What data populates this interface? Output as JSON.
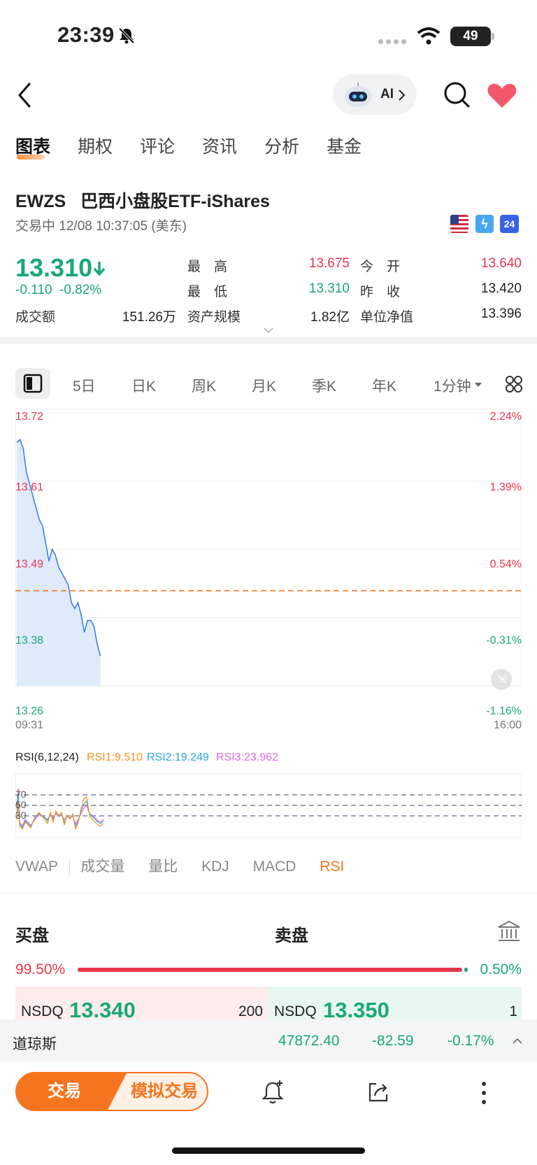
{
  "status_bar": {
    "time": "23:39",
    "battery": "49"
  },
  "nav": {
    "ai_label": "AI"
  },
  "tabs": [
    "图表",
    "期权",
    "评论",
    "资讯",
    "分析",
    "基金"
  ],
  "security": {
    "symbol": "EWZS",
    "name": "巴西小盘股ETF-iShares",
    "status": "交易中 12/08 10:37:05 (美东)",
    "price": "13.310",
    "change": "-0.110",
    "change_pct": "-0.82%",
    "badge_24": "24"
  },
  "stats": {
    "high_label": "最　高",
    "high": "13.675",
    "low_label": "最　低",
    "low": "13.310",
    "open_label": "今　开",
    "open": "13.640",
    "prev_label": "昨　收",
    "prev_close": "13.420",
    "turnover_label": "成交额",
    "turnover": "151.26万",
    "aum_label": "资产规模",
    "aum": "1.82亿",
    "nav_label": "单位净值",
    "nav": "13.396"
  },
  "periods": [
    "5日",
    "日K",
    "周K",
    "月K",
    "季K",
    "年K",
    "1分钟"
  ],
  "chart_data": {
    "type": "line",
    "ylim": [
      13.26,
      13.72
    ],
    "y_ticks_left": [
      "13.72",
      "13.61",
      "13.49",
      "13.38",
      "13.26"
    ],
    "y_ticks_right": [
      "2.24%",
      "1.39%",
      "0.54%",
      "-0.31%",
      "-1.16%"
    ],
    "x_start": "09:31",
    "x_end": "16:00",
    "reference_line": 13.42,
    "series": [
      {
        "values": [
          13.67,
          13.675,
          13.66,
          13.62,
          13.6,
          13.58,
          13.56,
          13.54,
          13.53,
          13.5,
          13.47,
          13.49,
          13.48,
          13.46,
          13.45,
          13.44,
          13.43,
          13.4,
          13.39,
          13.4,
          13.38,
          13.35,
          13.37,
          13.37,
          13.36,
          13.33,
          13.31
        ]
      }
    ]
  },
  "rsi": {
    "title": "RSI(6,12,24)",
    "rsi1": "RSI1:9.510",
    "rsi2": "RSI2:19.249",
    "rsi3": "RSI3:23.962",
    "levels": [
      "70",
      "50",
      "30"
    ]
  },
  "indicators": [
    "VWAP",
    "成交量",
    "量比",
    "KDJ",
    "MACD",
    "RSI"
  ],
  "order_book": {
    "bid_title": "买盘",
    "ask_title": "卖盘",
    "bid_pct": "99.50%",
    "ask_pct": "0.50%",
    "bid_exchange": "NSDQ",
    "bid_price": "13.340",
    "bid_size": "200",
    "ask_exchange": "NSDQ",
    "ask_price": "13.350",
    "ask_size": "1"
  },
  "index_ticker": {
    "name": "道琼斯",
    "value": "47872.40",
    "change": "-82.59",
    "change_pct": "-0.17%"
  },
  "bottom": {
    "trade": "交易",
    "sim_trade": "模拟交易"
  },
  "colors": {
    "accent": "#f5741f",
    "up": "#e8364d",
    "down": "#19a974",
    "line": "#3d7fe6"
  }
}
